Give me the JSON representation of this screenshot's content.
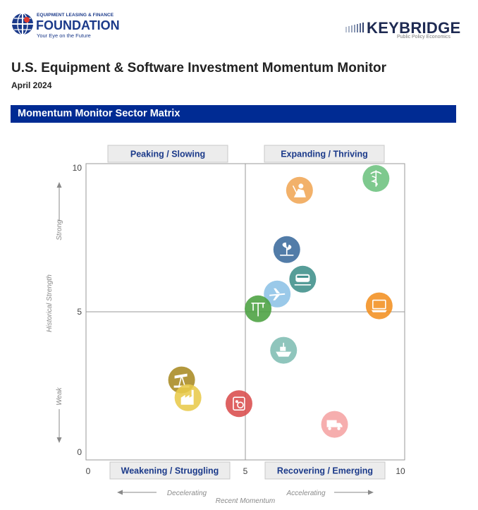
{
  "header": {
    "left_logo": {
      "top_line": "EQUIPMENT LEASING & FINANCE",
      "name": "FOUNDATION",
      "tagline": "Your Eye on the Future",
      "color": "#1b3a8a"
    },
    "right_logo": {
      "name": "KEYBRIDGE",
      "tagline": "Public Policy Economics",
      "color": "#1e2a52"
    },
    "title": "U.S. Equipment & Software Investment Momentum Monitor",
    "date": "April 2024"
  },
  "section": {
    "title": "Momentum Monitor Sector Matrix",
    "color": "#002b93"
  },
  "chart_data": {
    "type": "scatter",
    "xlabel": "Recent Momentum",
    "ylabel": "Historical Strength",
    "xlim": [
      0,
      10
    ],
    "ylim": [
      0,
      10
    ],
    "x_ticks": [
      "0",
      "5",
      "10"
    ],
    "y_ticks": [
      "0",
      "5",
      "10"
    ],
    "x_arrow_left": "Decelerating",
    "x_arrow_right": "Accelerating",
    "y_arrow_top": "Strong",
    "y_arrow_bottom": "Weak",
    "quadrants": {
      "top_left": "Peaking / Slowing",
      "top_right": "Expanding / Thriving",
      "bottom_left": "Weakening / Struggling",
      "bottom_right": "Recovering / Emerging"
    },
    "grid": false,
    "points": [
      {
        "icon": "medical-icon",
        "x": 9.1,
        "y": 9.5,
        "color": "#6cc17e"
      },
      {
        "icon": "construction-worker-icon",
        "x": 6.7,
        "y": 9.1,
        "color": "#f0a655"
      },
      {
        "icon": "agriculture-plant-icon",
        "x": 6.3,
        "y": 7.1,
        "color": "#3a6a9c"
      },
      {
        "icon": "railroad-train-icon",
        "x": 6.8,
        "y": 6.1,
        "color": "#3f8f8a"
      },
      {
        "icon": "aircraft-icon",
        "x": 6.0,
        "y": 5.6,
        "color": "#8cc1e6"
      },
      {
        "icon": "computer-icon",
        "x": 9.2,
        "y": 5.2,
        "color": "#f39020"
      },
      {
        "icon": "mining-oilfield-icon",
        "x": 5.4,
        "y": 5.1,
        "color": "#4aa040"
      },
      {
        "icon": "ships-boats-icon",
        "x": 6.2,
        "y": 3.7,
        "color": "#7fbdb3"
      },
      {
        "icon": "oil-pump-icon",
        "x": 3.0,
        "y": 2.7,
        "color": "#a88a22"
      },
      {
        "icon": "materials-factory-icon",
        "x": 3.2,
        "y": 2.1,
        "color": "#e8c94a"
      },
      {
        "icon": "other-industrial-icon",
        "x": 4.8,
        "y": 1.9,
        "color": "#d94c4c"
      },
      {
        "icon": "trucks-icon",
        "x": 7.8,
        "y": 1.2,
        "color": "#f5a3a3"
      }
    ]
  }
}
